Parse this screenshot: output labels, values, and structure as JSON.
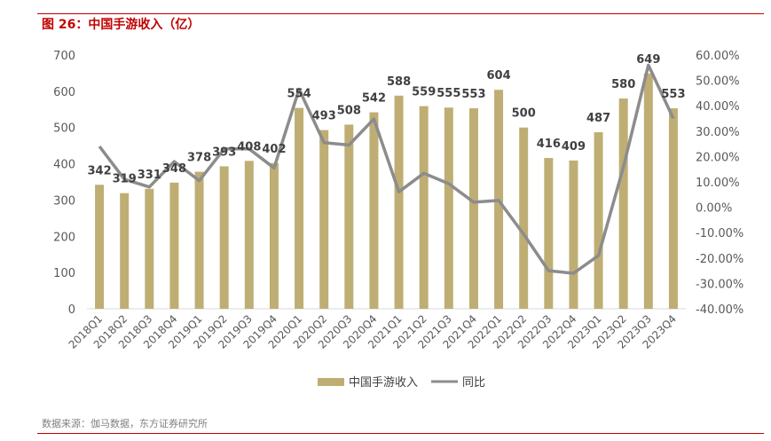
{
  "figure": {
    "title": "图 26：中国手游收入（亿）",
    "source": "数据来源：伽马数据，东方证券研究所"
  },
  "colors": {
    "bar": "#bfae74",
    "line": "#8c8c8c",
    "accent": "#c00000"
  },
  "chart_data": {
    "type": "bar",
    "categories": [
      "2018Q1",
      "2018Q2",
      "2018Q3",
      "2018Q4",
      "2019Q1",
      "2019Q2",
      "2019Q3",
      "2019Q4",
      "2020Q1",
      "2020Q2",
      "2020Q3",
      "2020Q4",
      "2021Q1",
      "2021Q2",
      "2021Q3",
      "2021Q4",
      "2022Q1",
      "2022Q2",
      "2022Q3",
      "2022Q4",
      "2023Q1",
      "2023Q2",
      "2023Q3",
      "2023Q4"
    ],
    "series": [
      {
        "name": "中国手游收入",
        "type": "bar",
        "axis": "left",
        "values": [
          342,
          319,
          331,
          348,
          378,
          393,
          408,
          402,
          554,
          493,
          508,
          542,
          588,
          559,
          555,
          553,
          604,
          500,
          416,
          409,
          487,
          580,
          649,
          553
        ]
      },
      {
        "name": "同比",
        "type": "line",
        "axis": "right",
        "unit": "%",
        "values": [
          24.0,
          11.0,
          8.0,
          18.0,
          10.5,
          23.0,
          23.0,
          15.5,
          46.5,
          25.5,
          24.5,
          34.8,
          6.1,
          13.4,
          9.3,
          2.0,
          2.7,
          -10.6,
          -25.0,
          -26.0,
          -19.0,
          15.9,
          56.0,
          35.0
        ]
      }
    ],
    "ylim_left": [
      0,
      700
    ],
    "yticks_left": [
      0,
      100,
      200,
      300,
      400,
      500,
      600,
      700
    ],
    "ylim_right": [
      -40,
      60
    ],
    "yticks_right": [
      "-40.00%",
      "-30.00%",
      "-20.00%",
      "-10.00%",
      "0.00%",
      "10.00%",
      "20.00%",
      "30.00%",
      "40.00%",
      "50.00%",
      "60.00%"
    ],
    "legend": {
      "placement": "bottom-center",
      "entries": [
        "中国手游收入",
        "同比"
      ]
    },
    "grid": false
  }
}
